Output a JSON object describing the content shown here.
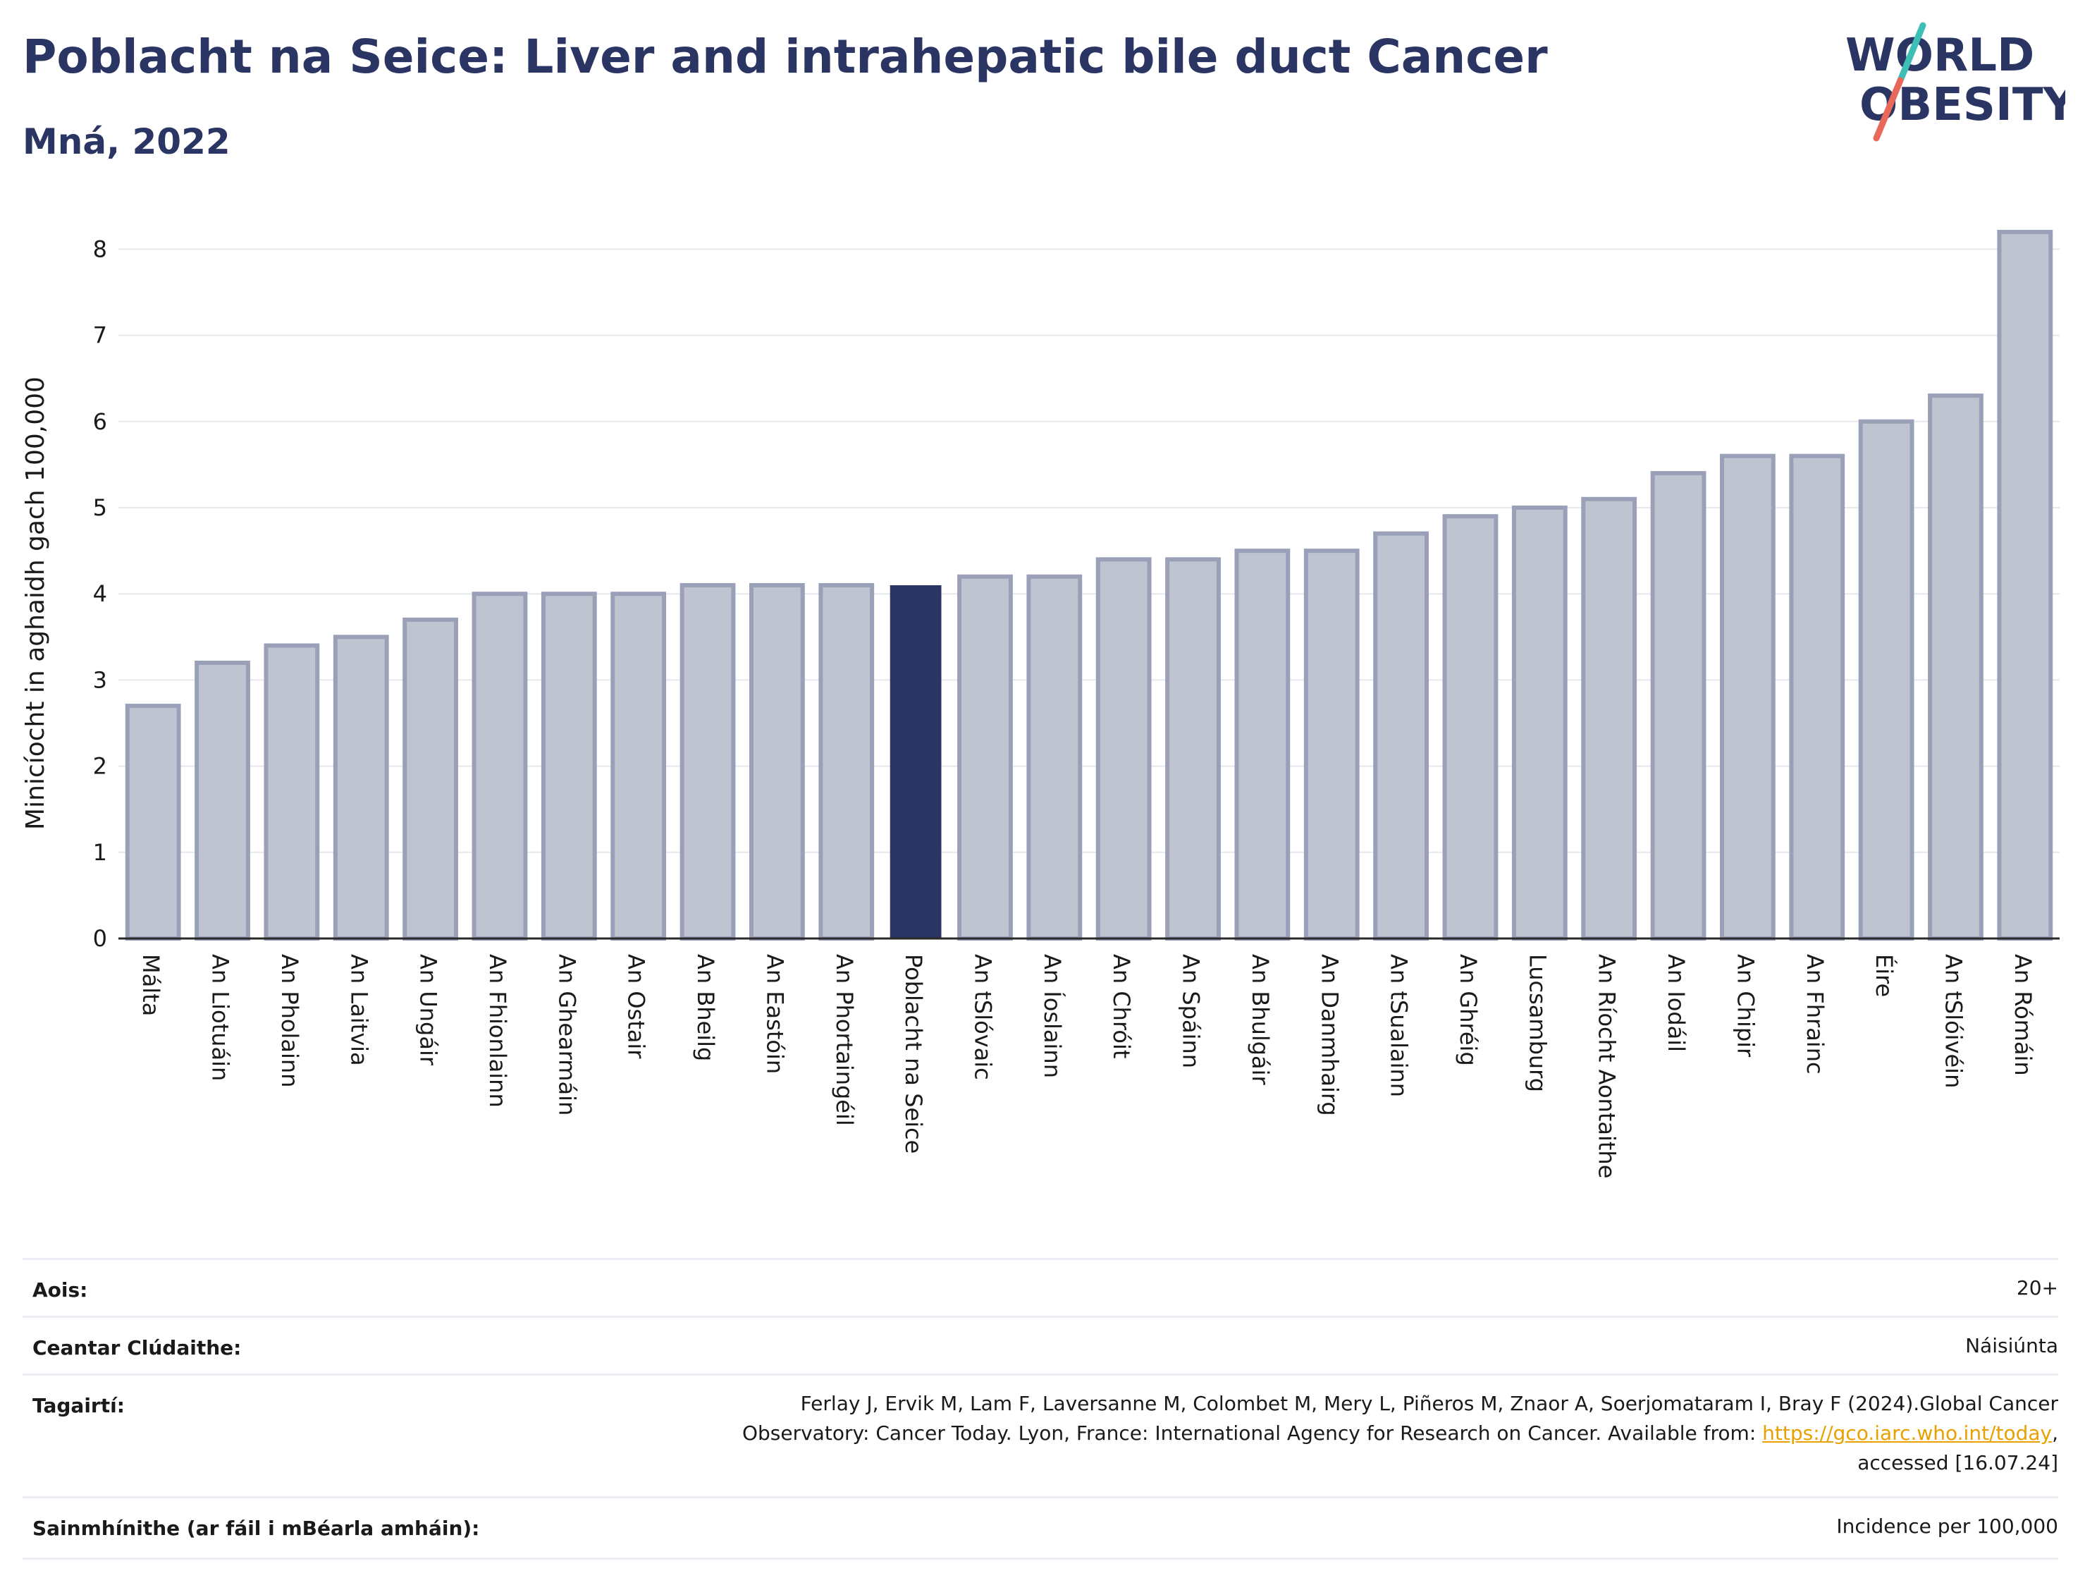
{
  "header": {
    "title": "Poblacht na Seice: Liver and intrahepatic bile duct Cancer",
    "subtitle": "Mná, 2022"
  },
  "logo": {
    "line1": "WORLD",
    "line2": "OBESITY",
    "colors": {
      "text": "#2b3563",
      "slash_top": "#3dbfb5",
      "slash_bottom": "#e8685a"
    }
  },
  "chart_data": {
    "type": "bar",
    "ylabel": "Minicíocht in aghaidh gach 100,000",
    "xlabel": "",
    "ylim": [
      0,
      8.3
    ],
    "yticks": [
      0,
      1,
      2,
      3,
      4,
      5,
      6,
      7,
      8
    ],
    "grid": true,
    "highlight": "Poblacht na Seice",
    "colors": {
      "bar": "#c0c4d0",
      "bar_border": "#9aa0b8",
      "highlight": "#2b3563"
    },
    "categories": [
      "Málta",
      "An Liotuáin",
      "An Pholainn",
      "An Laitvia",
      "An Ungáir",
      "An Fhionlainn",
      "An Ghearmáin",
      "An Ostair",
      "An Bheilg",
      "An Eastóin",
      "An Phortaingéil",
      "Poblacht na Seice",
      "An tSlóvaic",
      "An Íoslainn",
      "An Chróit",
      "An Spáinn",
      "An Bhulgáir",
      "An Danmhairg",
      "An tSualainn",
      "An Ghréig",
      "Lucsamburg",
      "An Ríocht Aontaithe",
      "An Iodáil",
      "An Chipir",
      "An Fhrainc",
      "Éire",
      "An tSlóivéin",
      "An Rómáin"
    ],
    "values": [
      2.7,
      3.2,
      3.4,
      3.5,
      3.7,
      4.0,
      4.0,
      4.0,
      4.1,
      4.1,
      4.1,
      4.1,
      4.2,
      4.2,
      4.4,
      4.4,
      4.5,
      4.5,
      4.7,
      4.9,
      5.0,
      5.1,
      5.4,
      5.6,
      5.6,
      6.0,
      6.3,
      8.2
    ]
  },
  "meta": {
    "age_label": "Aois:",
    "age_value": "20+",
    "area_label": "Ceantar Clúdaithe:",
    "area_value": "Náisiúnta",
    "ref_label": "Tagairtí:",
    "ref_line1": "Ferlay J, Ervik M, Lam F, Laversanne M, Colombet M, Mery L, Piñeros M, Znaor A, Soerjomataram I, Bray F (2024).Global Cancer",
    "ref_line2_pre": "Observatory: Cancer Today. Lyon, France: International Agency for Research on Cancer. Available from: ",
    "ref_link": "https://gco.iarc.who.int/today",
    "ref_line2_post": ",",
    "ref_line3": "accessed [16.07.24]",
    "def_label": "Sainmhínithe (ar fáil i mBéarla amháin):",
    "def_value": "Incidence per 100,000"
  }
}
